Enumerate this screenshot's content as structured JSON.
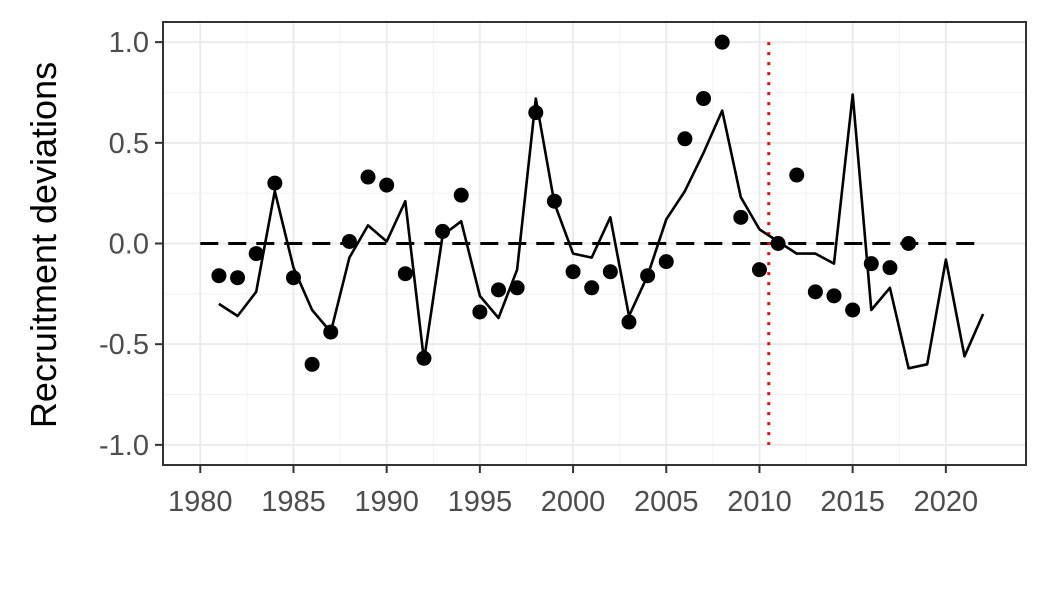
{
  "chart_data": {
    "type": "line",
    "title": "",
    "xlabel": "",
    "ylabel": "Recruitment deviations",
    "xlim": [
      1978,
      2024.3
    ],
    "ylim": [
      -1.1,
      1.1
    ],
    "x_ticks": [
      1980,
      1985,
      1990,
      1995,
      2000,
      2005,
      2010,
      2015,
      2020
    ],
    "x_tick_labels": [
      "1980",
      "1985",
      "1990",
      "1995",
      "2000",
      "2005",
      "2010",
      "2015",
      "2020"
    ],
    "y_ticks": [
      -1.0,
      -0.5,
      0.0,
      0.5,
      1.0
    ],
    "y_tick_labels": [
      "-1.0",
      "-0.5",
      "0.0",
      "0.5",
      "1.0"
    ],
    "grid": true,
    "legend": "none",
    "series": [
      {
        "kind": "points",
        "color": "#000000",
        "x": [
          1981,
          1982,
          1983,
          1984,
          1985,
          1986,
          1987,
          1988,
          1989,
          1990,
          1991,
          1992,
          1993,
          1994,
          1995,
          1996,
          1997,
          1998,
          1999,
          2000,
          2001,
          2002,
          2003,
          2004,
          2005,
          2006,
          2007,
          2008,
          2009,
          2010,
          2011,
          2012,
          2013,
          2014,
          2015,
          2016,
          2017,
          2018
        ],
        "y": [
          -0.16,
          -0.17,
          -0.05,
          0.3,
          -0.17,
          -0.6,
          -0.44,
          0.01,
          0.33,
          0.29,
          -0.15,
          -0.57,
          0.06,
          0.24,
          -0.34,
          -0.23,
          -0.22,
          0.65,
          0.21,
          -0.14,
          -0.22,
          -0.14,
          -0.39,
          -0.16,
          -0.09,
          0.52,
          0.72,
          1.0,
          0.13,
          -0.13,
          0.0,
          0.34,
          -0.24,
          -0.26,
          -0.33,
          -0.1,
          -0.12,
          0.0
        ]
      },
      {
        "kind": "line",
        "color": "#000000",
        "x": [
          1981,
          1982,
          1983,
          1984,
          1985,
          1986,
          1987,
          1988,
          1989,
          1990,
          1991,
          1992,
          1993,
          1994,
          1995,
          1996,
          1997,
          1998,
          1999,
          2000,
          2001,
          2002,
          2003,
          2004,
          2005,
          2006,
          2007,
          2008,
          2009,
          2010,
          2011,
          2012,
          2013,
          2014,
          2015,
          2016,
          2017,
          2018,
          2019,
          2020,
          2021,
          2022
        ],
        "y": [
          -0.3,
          -0.36,
          -0.24,
          0.26,
          -0.12,
          -0.33,
          -0.44,
          -0.07,
          0.09,
          0.01,
          0.21,
          -0.58,
          0.04,
          0.11,
          -0.26,
          -0.37,
          -0.13,
          0.72,
          0.2,
          -0.05,
          -0.07,
          0.13,
          -0.36,
          -0.16,
          0.12,
          0.26,
          0.45,
          0.66,
          0.23,
          0.07,
          0.01,
          -0.05,
          -0.05,
          -0.1,
          0.74,
          -0.33,
          -0.22,
          -0.62,
          -0.6,
          -0.08,
          -0.56,
          -0.35
        ]
      }
    ],
    "reference_lines": [
      {
        "kind": "horizontal",
        "y": 0,
        "style": "dashed",
        "color": "#000000"
      },
      {
        "kind": "vertical",
        "x": 2010.5,
        "style": "dotted",
        "color": "#ff0000"
      }
    ]
  }
}
